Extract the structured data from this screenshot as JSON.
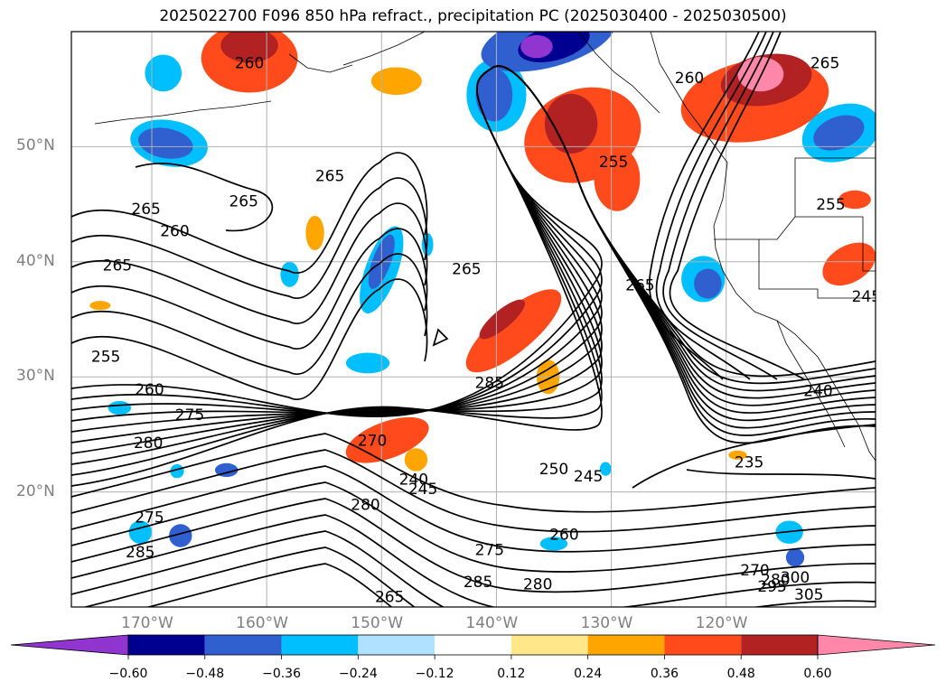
{
  "title": "2025022700 F096 850 hPa refract., precipitation PC (2025030400 - 2025030500)",
  "map": {
    "projection": "equirectangular",
    "lon_range": [
      -177,
      -107
    ],
    "lat_range": [
      10,
      60
    ],
    "lat_labels": [
      "50°N",
      "40°N",
      "30°N",
      "20°N"
    ],
    "lat_values": [
      50,
      40,
      30,
      20
    ],
    "lon_labels": [
      "170°W",
      "160°W",
      "150°W",
      "140°W",
      "130°W",
      "120°W"
    ],
    "lon_values": [
      -170,
      -160,
      -150,
      -140,
      -130,
      -120
    ],
    "grid": true,
    "gridline_color": "#b0b0b0"
  },
  "contour_labels": [
    {
      "text": "260",
      "lon": -161.5,
      "lat": 57.3
    },
    {
      "text": "265",
      "lon": -170.5,
      "lat": 44.6
    },
    {
      "text": "260",
      "lon": -168.0,
      "lat": 42.7
    },
    {
      "text": "265",
      "lon": -154.5,
      "lat": 47.5
    },
    {
      "text": "265",
      "lon": -162.0,
      "lat": 45.3
    },
    {
      "text": "265",
      "lon": -173.0,
      "lat": 39.7
    },
    {
      "text": "255",
      "lon": -174.0,
      "lat": 31.8
    },
    {
      "text": "260",
      "lon": -170.2,
      "lat": 28.9
    },
    {
      "text": "275",
      "lon": -166.7,
      "lat": 26.7
    },
    {
      "text": "280",
      "lon": -170.3,
      "lat": 24.3
    },
    {
      "text": "265",
      "lon": -142.6,
      "lat": 39.4
    },
    {
      "text": "285",
      "lon": -140.6,
      "lat": 29.5
    },
    {
      "text": "270",
      "lon": -150.8,
      "lat": 24.5
    },
    {
      "text": "240",
      "lon": -147.2,
      "lat": 21.1
    },
    {
      "text": "245",
      "lon": -146.4,
      "lat": 20.3
    },
    {
      "text": "250",
      "lon": -135.0,
      "lat": 22.0
    },
    {
      "text": "245",
      "lon": -132.0,
      "lat": 21.4
    },
    {
      "text": "280",
      "lon": -151.4,
      "lat": 18.9
    },
    {
      "text": "275",
      "lon": -170.2,
      "lat": 17.8
    },
    {
      "text": "285",
      "lon": -171.0,
      "lat": 14.8
    },
    {
      "text": "260",
      "lon": -134.1,
      "lat": 16.3
    },
    {
      "text": "275",
      "lon": -140.6,
      "lat": 15.0
    },
    {
      "text": "285",
      "lon": -141.6,
      "lat": 12.2
    },
    {
      "text": "280",
      "lon": -136.4,
      "lat": 12.0
    },
    {
      "text": "265",
      "lon": -149.3,
      "lat": 10.9
    },
    {
      "text": "255",
      "lon": -129.8,
      "lat": 48.7
    },
    {
      "text": "260",
      "lon": -123.2,
      "lat": 56.0
    },
    {
      "text": "265",
      "lon": -127.5,
      "lat": 38.0
    },
    {
      "text": "265",
      "lon": -111.4,
      "lat": 57.3
    },
    {
      "text": "255",
      "lon": -110.9,
      "lat": 45.0
    },
    {
      "text": "245",
      "lon": -107.8,
      "lat": 37.0
    },
    {
      "text": "240",
      "lon": -112.0,
      "lat": 28.8
    },
    {
      "text": "235",
      "lon": -118.0,
      "lat": 22.6
    },
    {
      "text": "270",
      "lon": -117.5,
      "lat": 13.2
    },
    {
      "text": "280",
      "lon": -115.7,
      "lat": 12.4
    },
    {
      "text": "295",
      "lon": -116.0,
      "lat": 11.8
    },
    {
      "text": "300",
      "lon": -114.0,
      "lat": 12.6
    },
    {
      "text": "305",
      "lon": -112.8,
      "lat": 11.1
    }
  ],
  "shading": [
    {
      "lon": -161.5,
      "lat": 57.7,
      "rx": 4.2,
      "ry": 3.0,
      "color": "#ff4a1c",
      "rot": 0
    },
    {
      "lon": -161.5,
      "lat": 58.8,
      "rx": 2.5,
      "ry": 1.5,
      "color": "#b22222",
      "rot": 0
    },
    {
      "lon": -169.0,
      "lat": 56.4,
      "rx": 1.6,
      "ry": 1.6,
      "color": "#00bfff",
      "rot": 0
    },
    {
      "lon": -168.5,
      "lat": 50.3,
      "rx": 3.4,
      "ry": 2.0,
      "color": "#00bfff",
      "rot": 10
    },
    {
      "lon": -168.8,
      "lat": 50.3,
      "rx": 2.4,
      "ry": 1.3,
      "color": "#3060d0",
      "rot": 10
    },
    {
      "lon": -148.7,
      "lat": 55.7,
      "rx": 2.2,
      "ry": 1.2,
      "color": "#ffa500",
      "rot": 0
    },
    {
      "lon": -140.0,
      "lat": 54.5,
      "rx": 2.6,
      "ry": 3.2,
      "color": "#00bfff",
      "rot": 0
    },
    {
      "lon": -140.2,
      "lat": 54.5,
      "rx": 1.6,
      "ry": 2.3,
      "color": "#3060d0",
      "rot": 0
    },
    {
      "lon": -135.5,
      "lat": 59.3,
      "rx": 6.0,
      "ry": 2.4,
      "color": "#3060d0",
      "rot": -15
    },
    {
      "lon": -135.0,
      "lat": 59.0,
      "rx": 3.2,
      "ry": 1.5,
      "color": "#000090",
      "rot": -15
    },
    {
      "lon": -136.5,
      "lat": 58.7,
      "rx": 1.4,
      "ry": 1.0,
      "color": "#9035d0",
      "rot": 0
    },
    {
      "lon": -132.5,
      "lat": 51.0,
      "rx": 5.2,
      "ry": 4.0,
      "color": "#ff4a1c",
      "rot": -20
    },
    {
      "lon": -133.5,
      "lat": 52.0,
      "rx": 2.3,
      "ry": 2.6,
      "color": "#b22222",
      "rot": 0
    },
    {
      "lon": -129.5,
      "lat": 47.2,
      "rx": 2.0,
      "ry": 2.8,
      "color": "#ff4a1c",
      "rot": 0
    },
    {
      "lon": -117.5,
      "lat": 54.0,
      "rx": 6.5,
      "ry": 3.5,
      "color": "#ff4a1c",
      "rot": -10
    },
    {
      "lon": -116.5,
      "lat": 55.8,
      "rx": 4.0,
      "ry": 2.2,
      "color": "#b22222",
      "rot": -10
    },
    {
      "lon": -117.0,
      "lat": 56.3,
      "rx": 2.0,
      "ry": 1.5,
      "color": "#ff88aa",
      "rot": 0
    },
    {
      "lon": -110.0,
      "lat": 51.2,
      "rx": 3.5,
      "ry": 2.4,
      "color": "#00bfff",
      "rot": -20
    },
    {
      "lon": -110.2,
      "lat": 51.2,
      "rx": 2.3,
      "ry": 1.4,
      "color": "#3060d0",
      "rot": -20
    },
    {
      "lon": -108.8,
      "lat": 45.4,
      "rx": 1.4,
      "ry": 0.8,
      "color": "#ff4a1c",
      "rot": 0
    },
    {
      "lon": -109.3,
      "lat": 39.8,
      "rx": 2.5,
      "ry": 1.6,
      "color": "#ff4a1c",
      "rot": -30
    },
    {
      "lon": -122.0,
      "lat": 38.5,
      "rx": 1.9,
      "ry": 2.0,
      "color": "#00bfff",
      "rot": 0
    },
    {
      "lon": -121.6,
      "lat": 38.1,
      "rx": 1.2,
      "ry": 1.3,
      "color": "#3060d0",
      "rot": 0
    },
    {
      "lon": -150.0,
      "lat": 39.3,
      "rx": 1.4,
      "ry": 4.0,
      "color": "#00bfff",
      "rot": 20
    },
    {
      "lon": -150.0,
      "lat": 40.0,
      "rx": 0.8,
      "ry": 2.5,
      "color": "#3060d0",
      "rot": 20
    },
    {
      "lon": -155.8,
      "lat": 42.5,
      "rx": 0.8,
      "ry": 1.5,
      "color": "#ffa500",
      "rot": 0
    },
    {
      "lon": -158.0,
      "lat": 38.9,
      "rx": 0.8,
      "ry": 1.1,
      "color": "#00bfff",
      "rot": 0
    },
    {
      "lon": -151.2,
      "lat": 31.2,
      "rx": 1.9,
      "ry": 0.9,
      "color": "#00bfff",
      "rot": 0
    },
    {
      "lon": -138.5,
      "lat": 34.0,
      "rx": 5.2,
      "ry": 1.8,
      "color": "#ff4a1c",
      "rot": -40
    },
    {
      "lon": -139.5,
      "lat": 35.0,
      "rx": 2.5,
      "ry": 0.8,
      "color": "#b22222",
      "rot": -40
    },
    {
      "lon": -135.5,
      "lat": 30.0,
      "rx": 1.0,
      "ry": 1.5,
      "color": "#ffa500",
      "rot": 0
    },
    {
      "lon": -149.5,
      "lat": 24.5,
      "rx": 3.8,
      "ry": 1.6,
      "color": "#ff4a1c",
      "rot": -20
    },
    {
      "lon": -147.0,
      "lat": 22.8,
      "rx": 1.0,
      "ry": 1.0,
      "color": "#ffa500",
      "rot": 0
    },
    {
      "lon": -146.0,
      "lat": 41.5,
      "rx": 0.5,
      "ry": 1.0,
      "color": "#00bfff",
      "rot": 0
    },
    {
      "lon": -171.0,
      "lat": 16.5,
      "rx": 1.0,
      "ry": 1.0,
      "color": "#00bfff",
      "rot": 0
    },
    {
      "lon": -167.5,
      "lat": 16.2,
      "rx": 1.0,
      "ry": 1.0,
      "color": "#3060d0",
      "rot": 0
    },
    {
      "lon": -172.8,
      "lat": 27.3,
      "rx": 1.0,
      "ry": 0.6,
      "color": "#00bfff",
      "rot": 0
    },
    {
      "lon": -174.5,
      "lat": 36.2,
      "rx": 0.9,
      "ry": 0.4,
      "color": "#ffa500",
      "rot": 0
    },
    {
      "lon": -114.5,
      "lat": 16.5,
      "rx": 1.2,
      "ry": 1.0,
      "color": "#00bfff",
      "rot": 0
    },
    {
      "lon": -114.0,
      "lat": 14.3,
      "rx": 0.8,
      "ry": 0.8,
      "color": "#3060d0",
      "rot": 0
    },
    {
      "lon": -130.5,
      "lat": 22.0,
      "rx": 0.5,
      "ry": 0.6,
      "color": "#00bfff",
      "rot": 0
    },
    {
      "lon": -135.0,
      "lat": 15.5,
      "rx": 1.2,
      "ry": 0.6,
      "color": "#00bfff",
      "rot": 0
    },
    {
      "lon": -119.0,
      "lat": 23.2,
      "rx": 0.8,
      "ry": 0.4,
      "color": "#ffa500",
      "rot": 0
    },
    {
      "lon": -163.5,
      "lat": 21.9,
      "rx": 1.0,
      "ry": 0.6,
      "color": "#3060d0",
      "rot": 0
    },
    {
      "lon": -167.8,
      "lat": 21.8,
      "rx": 0.6,
      "ry": 0.6,
      "color": "#00bfff",
      "rot": 0
    }
  ],
  "colorbar": {
    "colors": [
      "#9035d0",
      "#000090",
      "#3060d0",
      "#00bfff",
      "#b0e2ff",
      "#ffffff",
      "#ffe78a",
      "#ffa500",
      "#ff4a1c",
      "#b22222",
      "#ff88aa"
    ],
    "ticks": [
      "−0.60",
      "−0.48",
      "−0.36",
      "−0.24",
      "−0.12",
      "0.12",
      "0.24",
      "0.36",
      "0.48",
      "0.60"
    ]
  }
}
